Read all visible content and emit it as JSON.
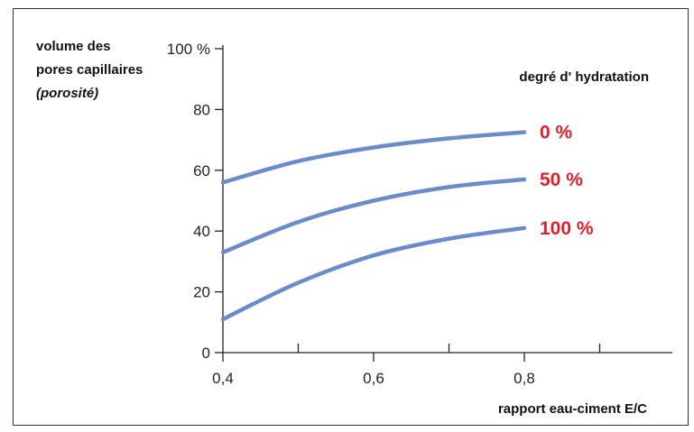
{
  "chart_data": {
    "type": "line",
    "title": "",
    "ylabel_lines": [
      "volume des",
      "pores capillaires",
      "(porosité)"
    ],
    "xlabel": "rapport eau-ciment E/C",
    "legend_title": "degré d' hydratation",
    "x_ticks": [
      "0,4",
      "0,6",
      "0,8"
    ],
    "x_tick_values": [
      0.4,
      0.6,
      0.8
    ],
    "x_minor_ticks": [
      0.5,
      0.7,
      0.9
    ],
    "xlim": [
      0.4,
      0.9
    ],
    "y_ticks": [
      "0",
      "20",
      "40",
      "60",
      "80",
      "100 %"
    ],
    "y_tick_values": [
      0,
      20,
      40,
      60,
      80,
      100
    ],
    "ylim": [
      0,
      100
    ],
    "grid": false,
    "series_color": "#6a8cca",
    "label_color": "#e0202a",
    "series": [
      {
        "name": "0 %",
        "x": [
          0.4,
          0.5,
          0.6,
          0.7,
          0.8
        ],
        "y": [
          56,
          63,
          67.5,
          70.5,
          72.5
        ]
      },
      {
        "name": "50 %",
        "x": [
          0.4,
          0.5,
          0.6,
          0.7,
          0.8
        ],
        "y": [
          33,
          43,
          50,
          54.5,
          57
        ]
      },
      {
        "name": "100 %",
        "x": [
          0.4,
          0.5,
          0.6,
          0.7,
          0.8
        ],
        "y": [
          11,
          23,
          32,
          37.5,
          41
        ]
      }
    ]
  }
}
